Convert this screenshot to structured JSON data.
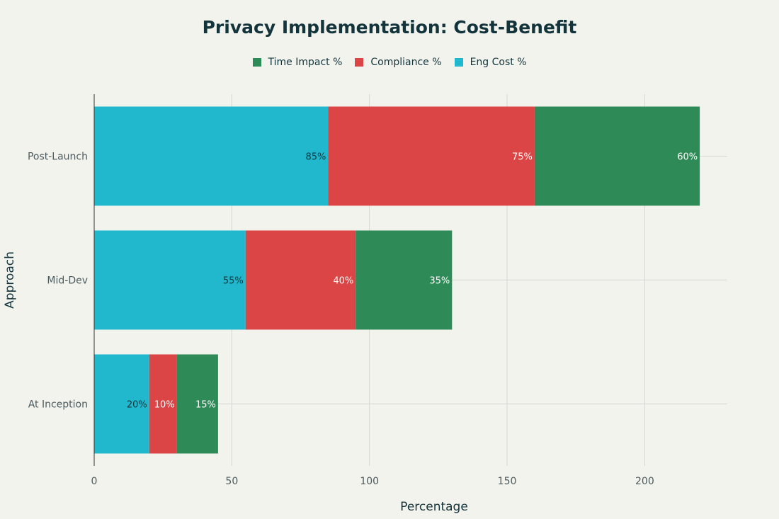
{
  "chart_data": {
    "type": "bar",
    "orientation": "horizontal",
    "stacked": true,
    "title": "Privacy Implementation: Cost-Benefit",
    "xlabel": "Percentage",
    "ylabel": "Approach",
    "categories": [
      "At Inception",
      "Mid-Dev",
      "Post-Launch"
    ],
    "series": [
      {
        "name": "Eng Cost %",
        "color": "#21b8cd",
        "label_color": "#13343b",
        "values": [
          20,
          55,
          85
        ]
      },
      {
        "name": "Compliance %",
        "color": "#db4545",
        "label_color": "#ffffff",
        "values": [
          10,
          40,
          75
        ]
      },
      {
        "name": "Time Impact %",
        "color": "#2e8b57",
        "label_color": "#ffffff",
        "values": [
          15,
          35,
          60
        ]
      }
    ],
    "xlim": [
      0,
      230
    ],
    "xticks": [
      0,
      50,
      100,
      150,
      200
    ],
    "legend_order": [
      "Time Impact %",
      "Compliance %",
      "Eng Cost %"
    ],
    "legend_position": "top-center",
    "grid": true,
    "label_suffix": "%"
  }
}
